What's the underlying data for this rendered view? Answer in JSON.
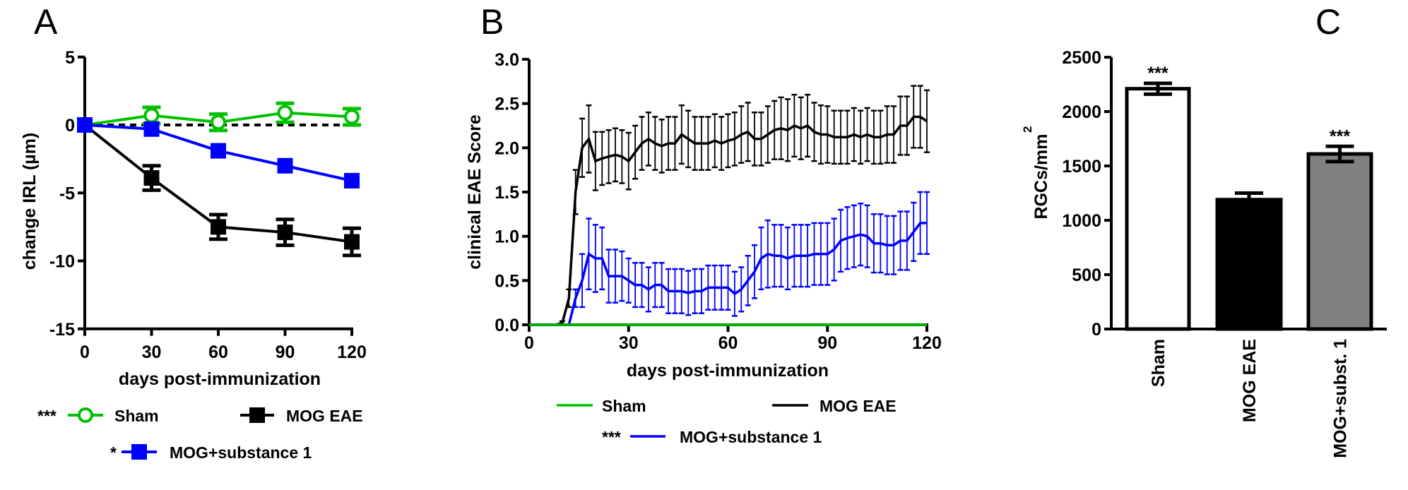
{
  "chart_data": [
    {
      "panel": "A",
      "type": "line",
      "xlabel": "days post-immunization",
      "ylabel": "change IRL (µm)",
      "xlim": [
        0,
        120
      ],
      "ylim": [
        -15,
        5
      ],
      "xticks": [
        "0",
        "30",
        "60",
        "90",
        "120"
      ],
      "yticks": [
        "5",
        "0",
        "-5",
        "-10",
        "-15"
      ],
      "reference_line": {
        "y": 0,
        "style": "dashed"
      },
      "x": [
        0,
        30,
        60,
        90,
        120
      ],
      "series": [
        {
          "name": "Sham",
          "annotation": "***",
          "color": "#00c000",
          "marker": "open-circle",
          "values": [
            0,
            0.7,
            0.2,
            0.9,
            0.6
          ],
          "error": [
            0,
            0.6,
            0.6,
            0.7,
            0.6
          ]
        },
        {
          "name": "MOG EAE",
          "annotation": "",
          "color": "#000000",
          "marker": "square",
          "values": [
            0,
            -3.9,
            -7.5,
            -7.9,
            -8.6
          ],
          "error": [
            0,
            0.9,
            0.9,
            0.95,
            1.0
          ]
        },
        {
          "name": "MOG+substance 1",
          "annotation": "*",
          "color": "#0000ff",
          "marker": "square",
          "values": [
            0,
            -0.3,
            -1.9,
            -3.0,
            -4.1
          ],
          "error": [
            0,
            0.15,
            0.2,
            0.2,
            0.2
          ]
        }
      ],
      "legend": "bottom"
    },
    {
      "panel": "B",
      "type": "line",
      "xlabel": "days post-immunization",
      "ylabel": "clinical EAE Score",
      "xlim": [
        0,
        120
      ],
      "ylim": [
        0,
        3.0
      ],
      "xticks": [
        "0",
        "30",
        "60",
        "90",
        "120"
      ],
      "yticks": [
        "0.0",
        "0.5",
        "1.0",
        "1.5",
        "2.0",
        "2.5",
        "3.0"
      ],
      "x": [
        0,
        2,
        4,
        6,
        8,
        10,
        12,
        14,
        16,
        18,
        20,
        22,
        24,
        26,
        28,
        30,
        32,
        34,
        36,
        38,
        40,
        42,
        44,
        46,
        48,
        50,
        52,
        54,
        56,
        58,
        60,
        62,
        64,
        66,
        68,
        70,
        72,
        74,
        76,
        78,
        80,
        82,
        84,
        86,
        88,
        90,
        92,
        94,
        96,
        98,
        100,
        102,
        104,
        106,
        108,
        110,
        112,
        114,
        116,
        118,
        120
      ],
      "series": [
        {
          "name": "Sham",
          "annotation": "",
          "color": "#00c000",
          "values": [
            0,
            0,
            0,
            0,
            0,
            0,
            0,
            0,
            0,
            0,
            0,
            0,
            0,
            0,
            0,
            0,
            0,
            0,
            0,
            0,
            0,
            0,
            0,
            0,
            0,
            0,
            0,
            0,
            0,
            0,
            0,
            0,
            0,
            0,
            0,
            0,
            0,
            0,
            0,
            0,
            0,
            0,
            0,
            0,
            0,
            0,
            0,
            0,
            0,
            0,
            0,
            0,
            0,
            0,
            0,
            0,
            0,
            0,
            0,
            0,
            0
          ],
          "error": []
        },
        {
          "name": "MOG EAE",
          "annotation": "",
          "color": "#000000",
          "values": [
            0,
            0,
            0,
            0,
            0,
            0.02,
            0.3,
            1.5,
            2.0,
            2.1,
            1.85,
            1.88,
            1.9,
            1.92,
            1.9,
            1.85,
            1.95,
            2.05,
            2.1,
            2.05,
            2.02,
            2.05,
            2.05,
            2.15,
            2.1,
            2.05,
            2.05,
            2.05,
            2.08,
            2.05,
            2.08,
            2.1,
            2.15,
            2.18,
            2.1,
            2.1,
            2.15,
            2.2,
            2.22,
            2.2,
            2.25,
            2.22,
            2.25,
            2.18,
            2.15,
            2.15,
            2.12,
            2.12,
            2.12,
            2.15,
            2.12,
            2.15,
            2.12,
            2.12,
            2.15,
            2.15,
            2.25,
            2.25,
            2.35,
            2.35,
            2.3
          ],
          "error": [
            0,
            0,
            0,
            0,
            0,
            0.02,
            0.1,
            0.25,
            0.33,
            0.38,
            0.33,
            0.3,
            0.3,
            0.3,
            0.3,
            0.32,
            0.3,
            0.3,
            0.3,
            0.3,
            0.3,
            0.3,
            0.3,
            0.33,
            0.32,
            0.3,
            0.3,
            0.3,
            0.3,
            0.3,
            0.3,
            0.3,
            0.32,
            0.33,
            0.3,
            0.3,
            0.32,
            0.33,
            0.35,
            0.35,
            0.35,
            0.35,
            0.35,
            0.33,
            0.33,
            0.32,
            0.3,
            0.3,
            0.3,
            0.3,
            0.3,
            0.3,
            0.3,
            0.3,
            0.32,
            0.32,
            0.33,
            0.33,
            0.35,
            0.35,
            0.35
          ]
        },
        {
          "name": "MOG+substance 1",
          "annotation": "***",
          "color": "#0000ff",
          "values": [
            0,
            0,
            0,
            0,
            0,
            0,
            0,
            0.3,
            0.5,
            0.8,
            0.75,
            0.75,
            0.55,
            0.55,
            0.55,
            0.5,
            0.45,
            0.45,
            0.4,
            0.45,
            0.45,
            0.38,
            0.38,
            0.38,
            0.36,
            0.38,
            0.38,
            0.42,
            0.42,
            0.42,
            0.42,
            0.35,
            0.4,
            0.5,
            0.6,
            0.75,
            0.8,
            0.78,
            0.78,
            0.75,
            0.78,
            0.78,
            0.78,
            0.8,
            0.8,
            0.8,
            0.85,
            0.95,
            0.98,
            1.0,
            1.02,
            1.0,
            0.92,
            0.92,
            0.9,
            0.9,
            0.95,
            0.95,
            1.05,
            1.15,
            1.15
          ],
          "error": [
            0,
            0,
            0,
            0,
            0,
            0,
            0,
            0.1,
            0.3,
            0.4,
            0.38,
            0.35,
            0.3,
            0.3,
            0.28,
            0.25,
            0.25,
            0.25,
            0.25,
            0.25,
            0.25,
            0.25,
            0.25,
            0.25,
            0.25,
            0.25,
            0.25,
            0.25,
            0.25,
            0.25,
            0.25,
            0.25,
            0.25,
            0.28,
            0.3,
            0.35,
            0.38,
            0.35,
            0.35,
            0.35,
            0.35,
            0.35,
            0.35,
            0.35,
            0.35,
            0.35,
            0.35,
            0.35,
            0.35,
            0.35,
            0.35,
            0.35,
            0.33,
            0.33,
            0.33,
            0.33,
            0.33,
            0.33,
            0.33,
            0.35,
            0.35
          ]
        }
      ],
      "legend": "bottom"
    },
    {
      "panel": "C",
      "type": "bar",
      "ylabel": "RGCs/mm",
      "ylabel_superscript": "2",
      "ylim": [
        0,
        2500
      ],
      "yticks": [
        "0",
        "500",
        "1000",
        "1500",
        "2000",
        "2500"
      ],
      "categories": [
        "Sham",
        "MOG EAE",
        "MOG+subst. 1"
      ],
      "values": [
        2210,
        1190,
        1610
      ],
      "error": [
        50,
        60,
        70
      ],
      "annotations": [
        "***",
        "",
        "***"
      ],
      "colors": [
        "#ffffff",
        "#000000",
        "#808080"
      ]
    }
  ]
}
